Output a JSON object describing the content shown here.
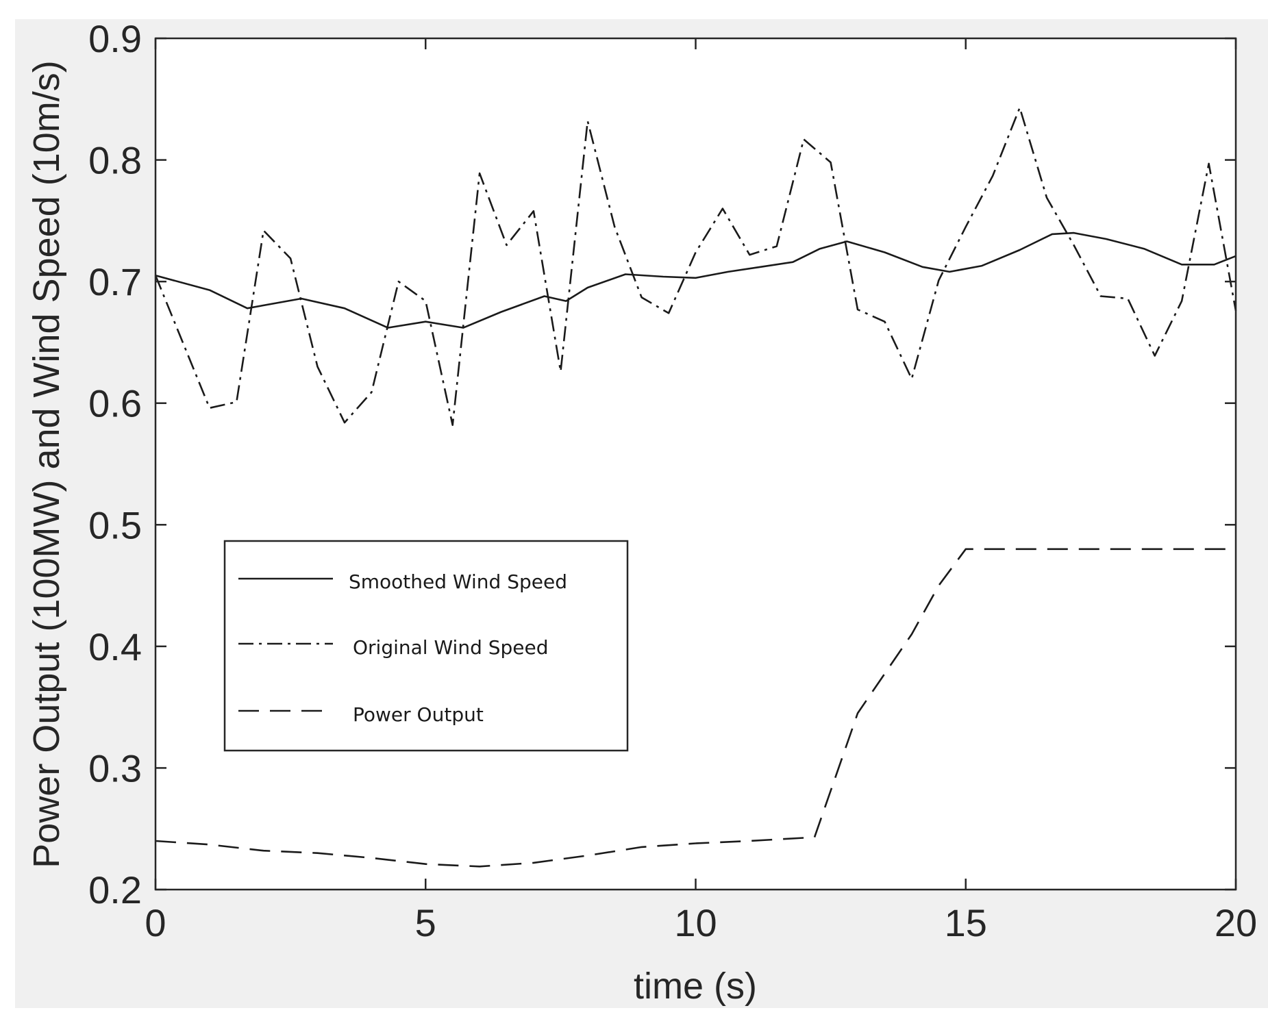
{
  "colors": {
    "figure_background": "#f0f0f0",
    "axes_background": "#ffffff",
    "axes_color": "#262626",
    "ylabel_color": "#c55a11",
    "series_color": "#1a1a1a"
  },
  "chart_data": {
    "type": "line",
    "title": "",
    "xlabel": "time (s)",
    "ylabel": "Power Output (100MW) and Wind Speed (10m/s)",
    "xlim": [
      0,
      20
    ],
    "ylim": [
      0.2,
      0.9
    ],
    "xticks": [
      0,
      5,
      10,
      15,
      20
    ],
    "xtick_labels": [
      "0",
      "5",
      "10",
      "15",
      "20"
    ],
    "yticks": [
      0.2,
      0.3,
      0.4,
      0.5,
      0.6,
      0.7,
      0.8,
      0.9
    ],
    "ytick_labels": [
      "0.2",
      "0.3",
      "0.4",
      "0.5",
      "0.6",
      "0.7",
      "0.8",
      "0.9"
    ],
    "grid": false,
    "legend_position": "center-left",
    "series": [
      {
        "name": "Smoothed Wind Speed",
        "style": "solid",
        "x": [
          0,
          1,
          1.7,
          2.7,
          3.5,
          4.3,
          5.0,
          5.7,
          6.4,
          7.2,
          7.6,
          8.0,
          8.7,
          9.4,
          10.0,
          10.6,
          11.2,
          11.8,
          12.3,
          12.8,
          13.5,
          14.2,
          14.7,
          15.3,
          16.0,
          16.6,
          17.0,
          17.6,
          18.3,
          19.0,
          19.6,
          20.0
        ],
        "values": [
          0.705,
          0.693,
          0.678,
          0.686,
          0.678,
          0.662,
          0.667,
          0.662,
          0.675,
          0.688,
          0.684,
          0.695,
          0.706,
          0.704,
          0.703,
          0.708,
          0.712,
          0.716,
          0.727,
          0.733,
          0.724,
          0.712,
          0.708,
          0.713,
          0.726,
          0.739,
          0.74,
          0.735,
          0.727,
          0.714,
          0.714,
          0.721
        ]
      },
      {
        "name": "Original Wind Speed",
        "style": "dashdot",
        "x": [
          0,
          1.0,
          1.5,
          2.0,
          2.5,
          3.0,
          3.5,
          4.0,
          4.5,
          5.0,
          5.5,
          6.0,
          6.5,
          7.0,
          7.5,
          8.0,
          8.5,
          9.0,
          9.5,
          10.0,
          10.5,
          11.0,
          11.5,
          12.0,
          12.5,
          13.0,
          13.5,
          14.0,
          14.5,
          15.0,
          15.5,
          16.0,
          16.5,
          17.0,
          17.5,
          18.0,
          18.5,
          19.0,
          19.5,
          20.0
        ],
        "values": [
          0.705,
          0.596,
          0.601,
          0.742,
          0.719,
          0.63,
          0.584,
          0.609,
          0.7,
          0.684,
          0.582,
          0.789,
          0.73,
          0.758,
          0.626,
          0.832,
          0.745,
          0.687,
          0.674,
          0.724,
          0.76,
          0.722,
          0.729,
          0.817,
          0.798,
          0.677,
          0.667,
          0.62,
          0.701,
          0.745,
          0.787,
          0.843,
          0.769,
          0.73,
          0.688,
          0.686,
          0.639,
          0.684,
          0.797,
          0.676
        ]
      },
      {
        "name": "Power Output",
        "style": "dashed",
        "x": [
          0,
          1.0,
          2.0,
          3.0,
          4.0,
          5.0,
          6.0,
          7.0,
          8.0,
          9.0,
          10.0,
          11.0,
          12.2,
          13.0,
          14.0,
          14.5,
          15.0,
          16.0,
          17.0,
          18.0,
          19.0,
          20.0
        ],
        "values": [
          0.24,
          0.237,
          0.232,
          0.23,
          0.226,
          0.221,
          0.219,
          0.222,
          0.228,
          0.235,
          0.238,
          0.24,
          0.243,
          0.345,
          0.41,
          0.45,
          0.48,
          0.48,
          0.48,
          0.48,
          0.48,
          0.48
        ]
      }
    ]
  }
}
